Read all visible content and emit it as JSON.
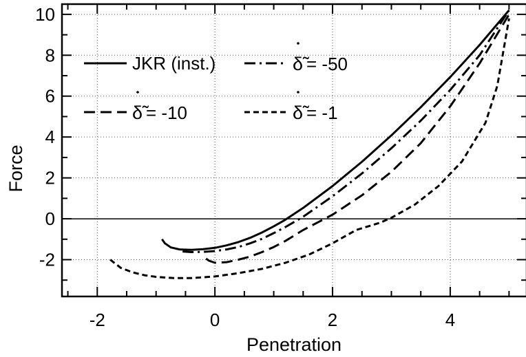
{
  "chart_data": {
    "type": "line",
    "title": "",
    "xlabel": "Penetration",
    "ylabel": "Force",
    "xlim": [
      -2.6,
      5.3
    ],
    "ylim": [
      -3.8,
      10.5
    ],
    "xticks": [
      -2,
      0,
      2,
      4
    ],
    "xtick_labels": [
      "-2",
      "0",
      "2",
      "4"
    ],
    "yticks": [
      -2,
      0,
      2,
      4,
      6,
      8,
      10
    ],
    "ytick_labels": [
      "-2",
      "0",
      "2",
      "4",
      "6",
      "8",
      "10"
    ],
    "grid": "dotted",
    "zero_line": true,
    "legend_position": "top-left",
    "series": [
      {
        "name": "JKR (inst.)",
        "legend_symbol": "",
        "legend_value": "",
        "dash": "solid",
        "x": [
          -0.9,
          -0.85,
          -0.75,
          -0.6,
          -0.4,
          -0.2,
          0.0,
          0.2,
          0.4,
          0.6,
          0.8,
          1.0,
          1.2,
          1.5,
          2.0,
          2.5,
          3.0,
          3.5,
          4.0,
          4.5,
          5.0
        ],
        "y": [
          -1.0,
          -1.2,
          -1.4,
          -1.5,
          -1.52,
          -1.49,
          -1.42,
          -1.3,
          -1.14,
          -0.93,
          -0.67,
          -0.37,
          -0.04,
          0.53,
          1.6,
          2.79,
          4.08,
          5.46,
          6.93,
          8.5,
          10.2
        ]
      },
      {
        "name": "",
        "legend_symbol": "δ̃",
        "legend_value": "= -50",
        "dash": "dashdot",
        "x": [
          -0.55,
          -0.4,
          -0.2,
          0.0,
          0.2,
          0.4,
          0.6,
          0.8,
          1.0,
          1.2,
          1.5,
          2.0,
          2.5,
          3.0,
          3.5,
          4.0,
          4.5,
          5.0
        ],
        "y": [
          -1.6,
          -1.63,
          -1.62,
          -1.58,
          -1.5,
          -1.38,
          -1.2,
          -0.98,
          -0.7,
          -0.4,
          0.1,
          1.1,
          2.22,
          3.45,
          4.8,
          6.3,
          8.0,
          10.2
        ]
      },
      {
        "name": "",
        "legend_symbol": "δ̃",
        "legend_value": "= -10",
        "dash": "dashed",
        "x": [
          -0.15,
          -0.1,
          0.0,
          0.2,
          0.4,
          0.6,
          0.8,
          1.0,
          1.2,
          1.5,
          2.0,
          2.5,
          3.0,
          3.5,
          4.0,
          4.5,
          5.0
        ],
        "y": [
          -1.95,
          -2.05,
          -2.15,
          -2.12,
          -2.0,
          -1.85,
          -1.63,
          -1.38,
          -1.08,
          -0.55,
          0.2,
          1.15,
          2.3,
          3.7,
          5.5,
          7.6,
          10.0
        ]
      },
      {
        "name": "",
        "legend_symbol": "δ̃",
        "legend_value": "= -1",
        "dash": "shortdash",
        "x": [
          -1.78,
          -1.6,
          -1.4,
          -1.2,
          -1.0,
          -0.7,
          -0.4,
          0.0,
          0.4,
          0.8,
          1.2,
          1.6,
          2.0,
          2.4,
          2.8,
          3.0,
          3.4,
          3.8,
          4.2,
          4.6,
          4.8,
          5.0
        ],
        "y": [
          -2.0,
          -2.4,
          -2.62,
          -2.76,
          -2.84,
          -2.9,
          -2.9,
          -2.82,
          -2.66,
          -2.45,
          -2.15,
          -1.75,
          -1.2,
          -0.55,
          -0.2,
          0.05,
          0.7,
          1.6,
          2.8,
          4.7,
          6.5,
          9.8
        ]
      }
    ]
  }
}
